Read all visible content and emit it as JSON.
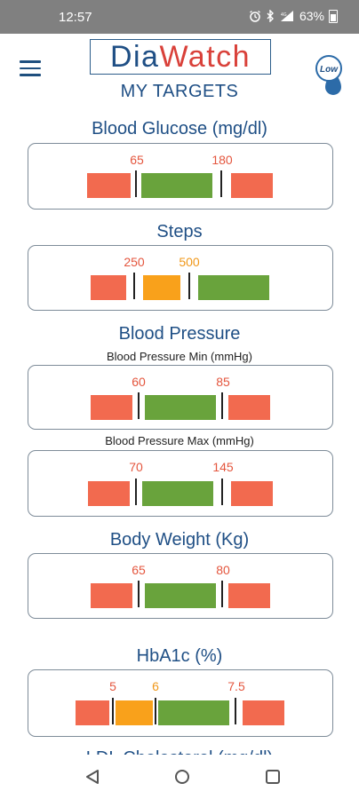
{
  "status_bar": {
    "time": "12:57",
    "battery": "63%"
  },
  "header": {
    "logo_part1": "Dia",
    "logo_part2": "Watch",
    "page_title": "MY TARGETS",
    "low_badge": "Low"
  },
  "sections": {
    "blood_glucose": {
      "title": "Blood Glucose (mg/dl)",
      "low": "65",
      "high": "180"
    },
    "steps": {
      "title": "Steps",
      "low": "250",
      "high": "500"
    },
    "blood_pressure": {
      "title": "Blood Pressure",
      "min_title": "Blood Pressure Min (mmHg)",
      "min_low": "60",
      "min_high": "85",
      "max_title": "Blood Pressure Max (mmHg)",
      "max_low": "70",
      "max_high": "145"
    },
    "body_weight": {
      "title": "Body Weight (Kg)",
      "low": "65",
      "high": "80"
    },
    "hba1c": {
      "title": "HbA1c (%)",
      "t1": "5",
      "t2": "6",
      "t3": "7.5"
    },
    "ldl": {
      "title": "LDL Cholesterol (mg/dl)"
    }
  },
  "colors": {
    "low": "#f26a4f",
    "target": "#69a33c",
    "caution": "#f9a11b",
    "brand_blue": "#1f4f85",
    "brand_red": "#d9413a"
  }
}
